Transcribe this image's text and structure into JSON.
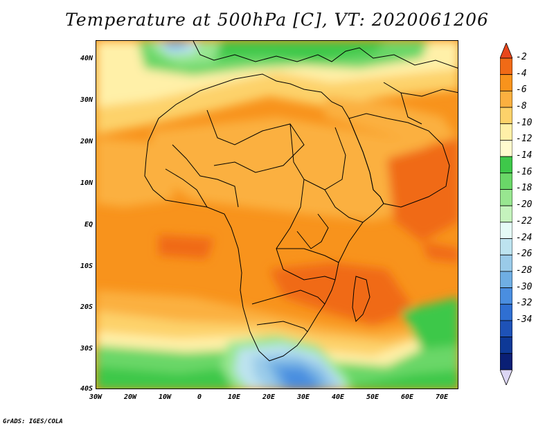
{
  "title": "Temperature at 500hPa [C], VT: 2020061206",
  "footer": "GrADS: IGES/COLA",
  "map": {
    "extent": {
      "lon_min": -30,
      "lon_max": 75,
      "lat_min": -40,
      "lat_max": 45
    },
    "y_ticks": [
      "40N",
      "30N",
      "20N",
      "10N",
      "EQ",
      "10S",
      "20S",
      "30S",
      "40S"
    ],
    "x_ticks": [
      "30W",
      "20W",
      "10W",
      "0",
      "10E",
      "20E",
      "30E",
      "40E",
      "50E",
      "60E",
      "70E"
    ],
    "variable": "Temperature at 500hPa",
    "units": "C"
  },
  "colorbar": {
    "labels": [
      "-2",
      "-4",
      "-6",
      "-8",
      "-10",
      "-12",
      "-14",
      "-16",
      "-18",
      "-20",
      "-22",
      "-24",
      "-26",
      "-28",
      "-30",
      "-32",
      "-34"
    ],
    "colors": [
      "#e8461c",
      "#f06a16",
      "#f8931c",
      "#fbb040",
      "#fdd26a",
      "#fff0a8",
      "#fffbcf",
      "#3ec84a",
      "#6ad768",
      "#98e690",
      "#c5f3bd",
      "#e5fbf6",
      "#bde3ef",
      "#9acbe9",
      "#6faee3",
      "#4a8ee0",
      "#2f6fd2",
      "#1e52b7",
      "#0e3997",
      "#0a1f75",
      "#dcd6f4"
    ]
  }
}
